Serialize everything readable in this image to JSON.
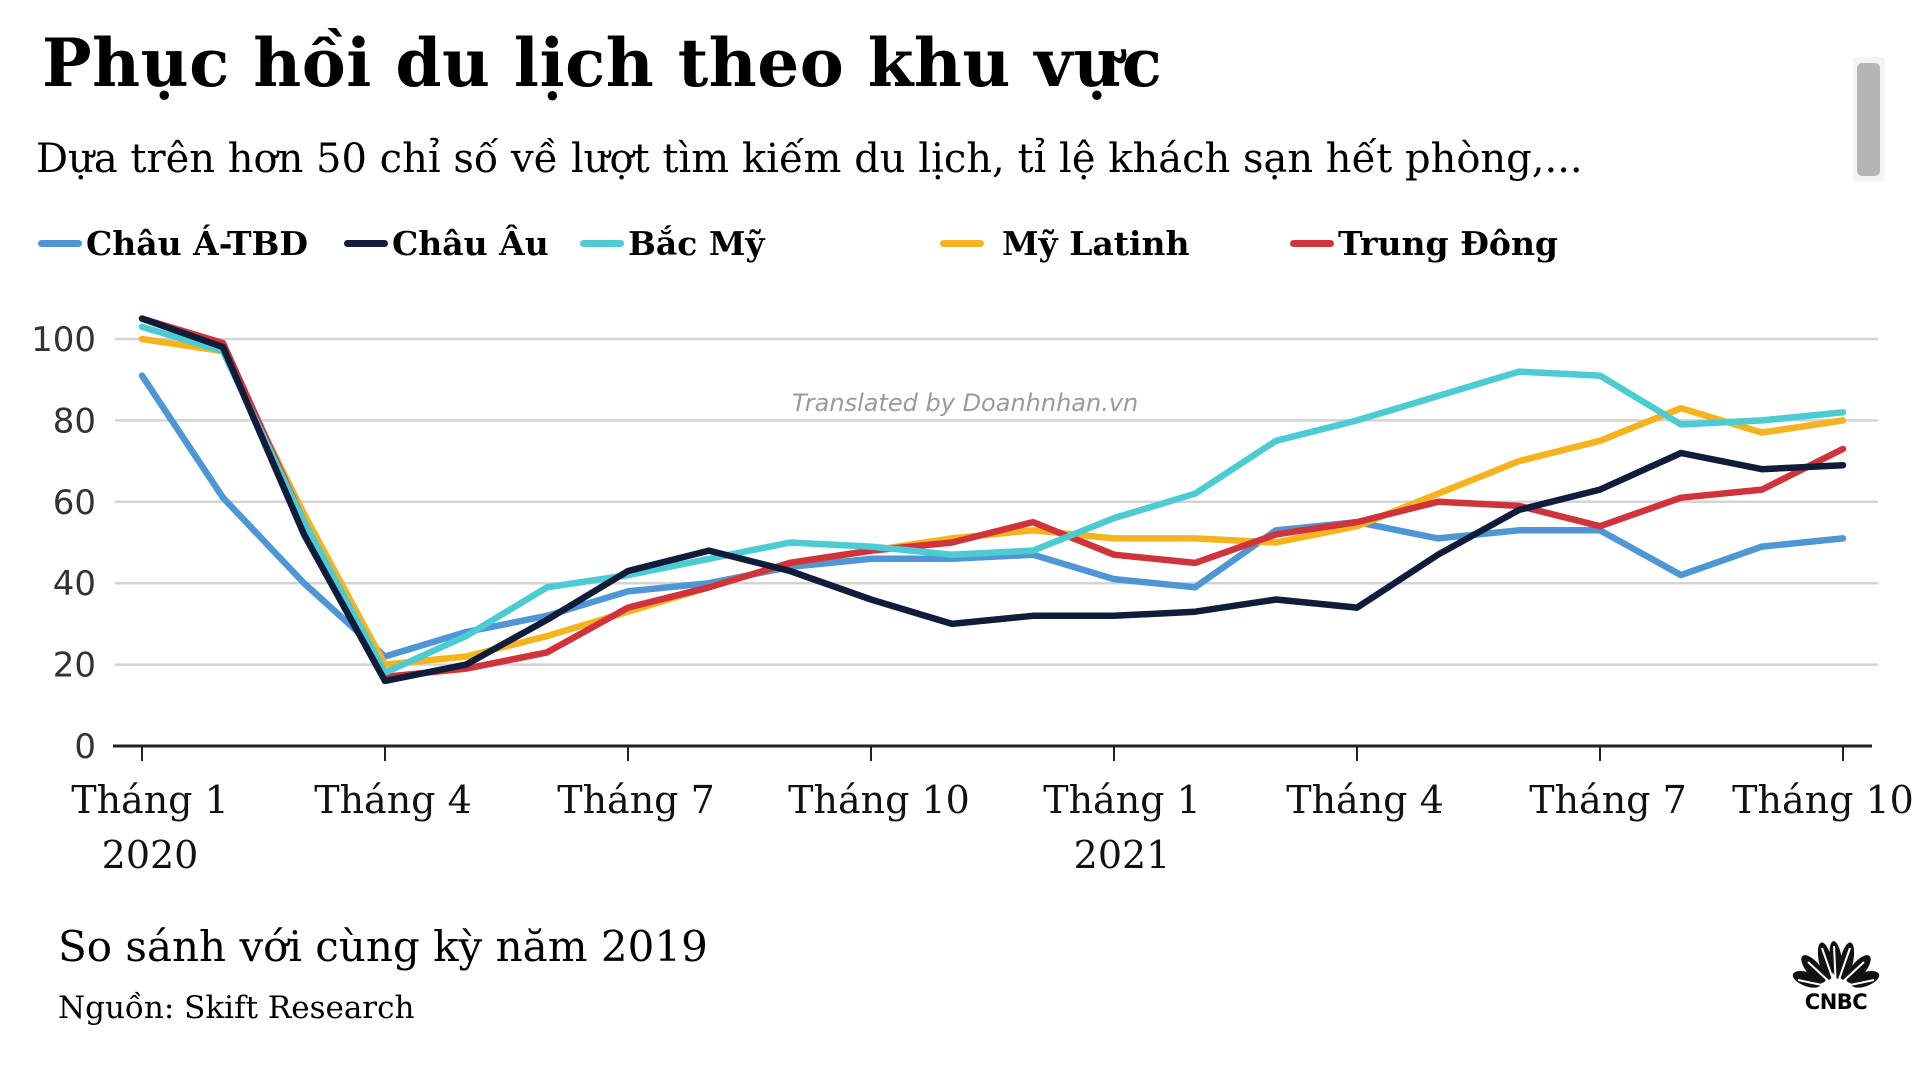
{
  "header": {
    "title": "Phục hồi du lịch theo khu vực",
    "subtitle": "Dựa trên hơn 50 chỉ số về lượt tìm kiếm du lịch, tỉ lệ khách sạn hết phòng,..."
  },
  "watermark": "Translated by Doanhnhan.vn",
  "footer": {
    "note": "So sánh với cùng kỳ năm 2019",
    "source": "Nguồn: Skift Research",
    "logo_text": "CNBC",
    "logo_icon": "peacock-icon"
  },
  "chart_data": {
    "type": "line",
    "title": "Phục hồi du lịch theo khu vực",
    "subtitle": "Dựa trên hơn 50 chỉ số về lượt tìm kiếm du lịch, tỉ lệ khách sạn hết phòng,...",
    "xlabel": "",
    "ylabel": "So sánh với cùng kỳ năm 2019",
    "ylim": [
      0,
      100
    ],
    "yticks": [
      "0",
      "20",
      "40",
      "60",
      "80",
      "100"
    ],
    "ytick_values": [
      0,
      20,
      40,
      60,
      80,
      100
    ],
    "grid": true,
    "legend_position": "top-left",
    "x": [
      "2020-01",
      "2020-02",
      "2020-03",
      "2020-04",
      "2020-05",
      "2020-06",
      "2020-07",
      "2020-08",
      "2020-09",
      "2020-10",
      "2020-11",
      "2020-12",
      "2021-01",
      "2021-02",
      "2021-03",
      "2021-04",
      "2021-05",
      "2021-06",
      "2021-07",
      "2021-08",
      "2021-09",
      "2021-10"
    ],
    "xticks": [
      {
        "index": 0,
        "label": "Tháng 1",
        "sublabel": "2020"
      },
      {
        "index": 3,
        "label": "Tháng 4",
        "sublabel": ""
      },
      {
        "index": 6,
        "label": "Tháng 7",
        "sublabel": ""
      },
      {
        "index": 9,
        "label": "Tháng 10",
        "sublabel": ""
      },
      {
        "index": 12,
        "label": "Tháng 1",
        "sublabel": "2021"
      },
      {
        "index": 15,
        "label": "Tháng 4",
        "sublabel": ""
      },
      {
        "index": 18,
        "label": "Tháng 7",
        "sublabel": ""
      },
      {
        "index": 21,
        "label": "Tháng 10",
        "sublabel": ""
      }
    ],
    "series": [
      {
        "name": "Châu Á-TBD",
        "color": "#4f96d4",
        "values": [
          91,
          61,
          40,
          22,
          28,
          32,
          38,
          40,
          44,
          46,
          46,
          47,
          41,
          39,
          53,
          55,
          51,
          53,
          53,
          42,
          49,
          51
        ]
      },
      {
        "name": "Mỹ Latinh",
        "color": "#f5b41d",
        "values": [
          100,
          97,
          57,
          20,
          22,
          27,
          33,
          39,
          45,
          48,
          51,
          53,
          51,
          51,
          50,
          54,
          62,
          70,
          75,
          83,
          77,
          80
        ]
      },
      {
        "name": "Trung Đông",
        "color": "#d1333b",
        "values": [
          105,
          99,
          55,
          17,
          19,
          23,
          34,
          39,
          45,
          48,
          50,
          55,
          47,
          45,
          52,
          55,
          60,
          59,
          54,
          61,
          63,
          73
        ]
      },
      {
        "name": "Bắc Mỹ",
        "color": "#4ccbd3",
        "values": [
          103,
          97,
          55,
          18,
          27,
          39,
          42,
          46,
          50,
          49,
          47,
          48,
          56,
          62,
          75,
          80,
          86,
          92,
          91,
          79,
          80,
          82
        ]
      },
      {
        "name": "Châu Âu",
        "color": "#0f1d3b",
        "values": [
          105,
          98,
          52,
          16,
          20,
          31,
          43,
          48,
          43,
          36,
          30,
          32,
          32,
          33,
          36,
          34,
          47,
          58,
          63,
          72,
          68,
          69
        ]
      }
    ],
    "legend": [
      {
        "name": "Châu Á-TBD",
        "color": "#4f96d4"
      },
      {
        "name": "Châu Âu",
        "color": "#0f1d3b"
      },
      {
        "name": "Bắc Mỹ",
        "color": "#4ccbd3"
      },
      {
        "name": "Mỹ Latinh",
        "color": "#f5b41d"
      },
      {
        "name": "Trung Đông",
        "color": "#d1333b"
      }
    ]
  }
}
